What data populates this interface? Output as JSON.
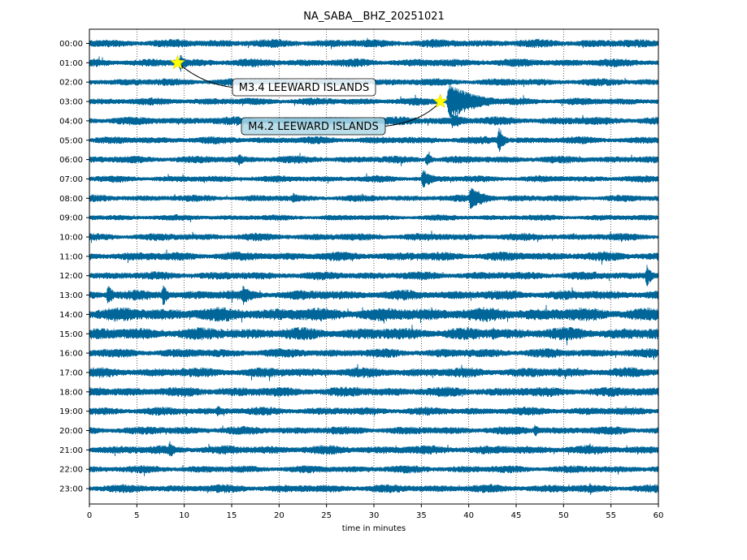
{
  "chart_data": {
    "type": "line",
    "title": "NA_SABA__BHZ_20251021",
    "xlabel": "time in minutes",
    "ylabel": "",
    "xlim": [
      0,
      60
    ],
    "x_ticks": [
      "0",
      "5",
      "10",
      "15",
      "20",
      "25",
      "30",
      "35",
      "40",
      "45",
      "50",
      "55",
      "60"
    ],
    "y_ticks": [
      "00:00",
      "01:00",
      "02:00",
      "03:00",
      "04:00",
      "05:00",
      "06:00",
      "07:00",
      "08:00",
      "09:00",
      "10:00",
      "11:00",
      "12:00",
      "13:00",
      "14:00",
      "15:00",
      "16:00",
      "17:00",
      "18:00",
      "19:00",
      "20:00",
      "21:00",
      "22:00",
      "23:00"
    ],
    "grid": "vertical dotted",
    "trace_color": "#006699",
    "row_amplitude": [
      0.22,
      0.22,
      0.2,
      0.2,
      0.22,
      0.2,
      0.2,
      0.18,
      0.18,
      0.16,
      0.2,
      0.24,
      0.22,
      0.26,
      0.36,
      0.32,
      0.24,
      0.26,
      0.26,
      0.22,
      0.22,
      0.24,
      0.2,
      0.22
    ],
    "bursts": [
      {
        "row": 1,
        "minute": 9.6,
        "amp": 0.5,
        "dur": 0.8
      },
      {
        "row": 3,
        "minute": 37.9,
        "amp": 0.95,
        "dur": 3.0
      },
      {
        "row": 4,
        "minute": 38.3,
        "amp": 0.45,
        "dur": 1.5
      },
      {
        "row": 5,
        "minute": 43.2,
        "amp": 0.7,
        "dur": 0.6
      },
      {
        "row": 6,
        "minute": 15.8,
        "amp": 0.35,
        "dur": 0.6
      },
      {
        "row": 6,
        "minute": 35.6,
        "amp": 0.4,
        "dur": 0.6
      },
      {
        "row": 7,
        "minute": 35.2,
        "amp": 0.5,
        "dur": 1.2
      },
      {
        "row": 8,
        "minute": 40.2,
        "amp": 0.65,
        "dur": 1.6
      },
      {
        "row": 8,
        "minute": 21.5,
        "amp": 0.3,
        "dur": 1.0
      },
      {
        "row": 12,
        "minute": 58.8,
        "amp": 0.6,
        "dur": 0.6
      },
      {
        "row": 13,
        "minute": 2.0,
        "amp": 0.6,
        "dur": 0.6
      },
      {
        "row": 13,
        "minute": 7.8,
        "amp": 0.6,
        "dur": 0.5
      },
      {
        "row": 13,
        "minute": 16.2,
        "amp": 0.55,
        "dur": 1.2
      },
      {
        "row": 15,
        "minute": 42.5,
        "amp": 0.35,
        "dur": 1.5
      },
      {
        "row": 17,
        "minute": 49.5,
        "amp": 0.3,
        "dur": 1.0
      },
      {
        "row": 19,
        "minute": 13.5,
        "amp": 0.3,
        "dur": 1.0
      },
      {
        "row": 20,
        "minute": 47.0,
        "amp": 0.35,
        "dur": 0.6
      },
      {
        "row": 21,
        "minute": 8.5,
        "amp": 0.5,
        "dur": 0.5
      },
      {
        "row": 23,
        "minute": 52.8,
        "amp": 0.35,
        "dur": 0.5
      }
    ],
    "events": [
      {
        "label": "M3.4 LEEWARD ISLANDS",
        "row": 1,
        "minute": 9.3,
        "star_color": "#ffff00",
        "box_color": "#ffffff"
      },
      {
        "label": "M4.2 LEEWARD ISLANDS",
        "row": 3,
        "minute": 37.0,
        "star_color": "#ffff00",
        "box_color": "#add8e6"
      }
    ]
  }
}
